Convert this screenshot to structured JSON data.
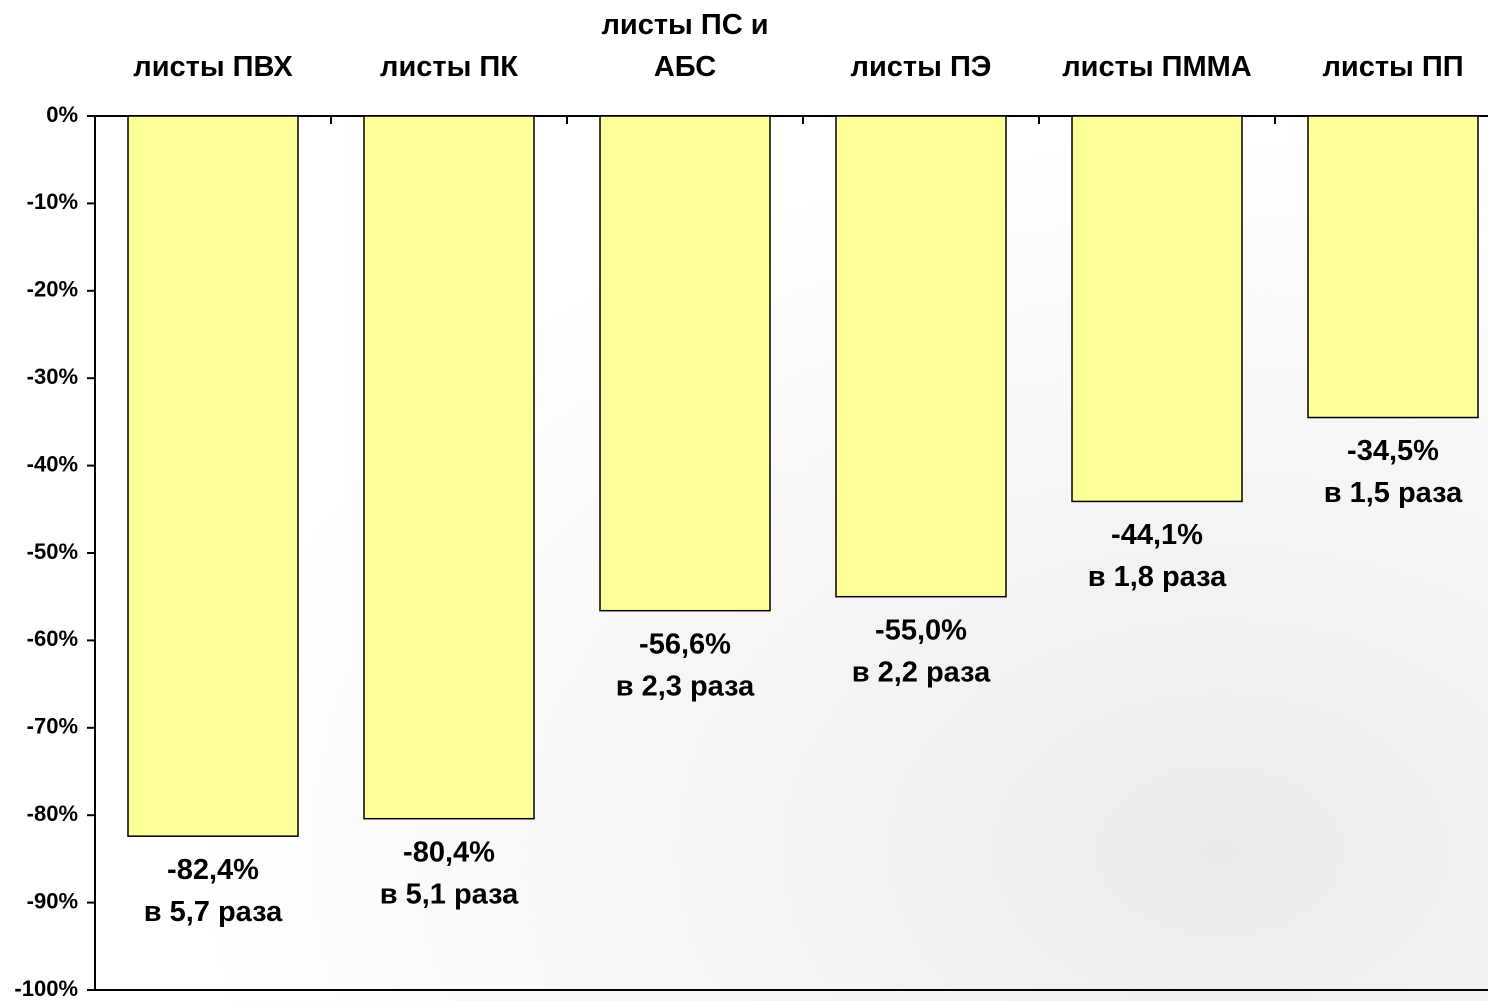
{
  "chart_data": {
    "type": "bar",
    "categories": [
      "листы ПВХ",
      "листы ПК",
      "листы ПС и АБС",
      "листы ПЭ",
      "листы ПММА",
      "листы ПП"
    ],
    "values": [
      -82.4,
      -80.4,
      -56.6,
      -55.0,
      -44.1,
      -34.5
    ],
    "value_labels": [
      "-82,4%",
      "-80,4%",
      "-56,6%",
      "-55,0%",
      "-44,1%",
      "-34,5%"
    ],
    "annotations": [
      "в 5,7 раза",
      "в 5,1 раза",
      "в 2,3 раза",
      "в 2,2 раза",
      "в 1,8 раза",
      "в 1,5 раза"
    ],
    "color": "#ffff99",
    "ylim": [
      -100,
      0
    ],
    "yticks": [
      {
        "value": 0,
        "label": "0%"
      },
      {
        "value": -10,
        "label": "-10%"
      },
      {
        "value": -20,
        "label": "-20%"
      },
      {
        "value": -30,
        "label": "-30%"
      },
      {
        "value": -40,
        "label": "-40%"
      },
      {
        "value": -50,
        "label": "-50%"
      },
      {
        "value": -60,
        "label": "-60%"
      },
      {
        "value": -70,
        "label": "-70%"
      },
      {
        "value": -80,
        "label": "-80%"
      },
      {
        "value": -90,
        "label": "-90%"
      },
      {
        "value": -100,
        "label": "-100%"
      }
    ]
  }
}
